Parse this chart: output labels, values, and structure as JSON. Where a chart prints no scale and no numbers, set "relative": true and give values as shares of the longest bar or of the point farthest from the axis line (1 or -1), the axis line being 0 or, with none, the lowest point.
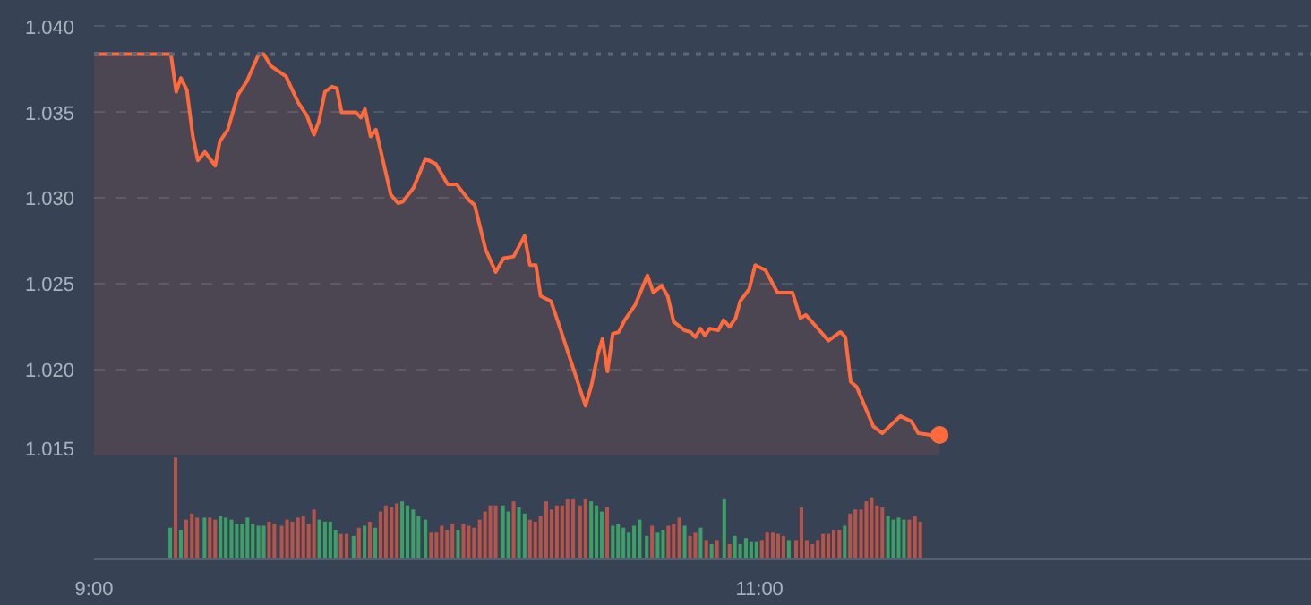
{
  "chart_data": [
    {
      "type": "area",
      "xlim": [
        9,
        12.66
      ],
      "ylim": [
        1.015,
        1.0415
      ],
      "yticks": [
        {
          "value": 1.015,
          "label": "1.015"
        },
        {
          "value": 1.02,
          "label": "1.020"
        },
        {
          "value": 1.025,
          "label": "1.025"
        },
        {
          "value": 1.03,
          "label": "1.030"
        },
        {
          "value": 1.035,
          "label": "1.035"
        },
        {
          "value": 1.04,
          "label": "1.040"
        }
      ],
      "tick_labels": "y",
      "grid": "y",
      "ref_lines": [
        {
          "axis": "y",
          "value": 1.0384,
          "line_style": "dotted",
          "color": "#5d6675"
        }
      ],
      "series": [
        {
          "type": "area",
          "color": "#ff6a3d",
          "line_style": "solid",
          "x": [
            9.0,
            9.231,
            9.247,
            9.261,
            9.279,
            9.297,
            9.312,
            9.333,
            9.364,
            9.378,
            9.402,
            9.432,
            9.459,
            9.495,
            9.51,
            9.532,
            9.577,
            9.613,
            9.64,
            9.661,
            9.676,
            9.694,
            9.715,
            9.73,
            9.744,
            9.787,
            9.802,
            9.814,
            9.831,
            9.847,
            9.892,
            9.914,
            9.928,
            9.96,
            9.996,
            10.027,
            10.063,
            10.09,
            10.126,
            10.144,
            10.177,
            10.207,
            10.231,
            10.261,
            10.294,
            10.31,
            10.328,
            10.342,
            10.373,
            10.396,
            10.477,
            10.495,
            10.514,
            10.528,
            10.543,
            10.559,
            10.577,
            10.595,
            10.627,
            10.663,
            10.681,
            10.706,
            10.724,
            10.742,
            10.775,
            10.793,
            10.807,
            10.822,
            10.836,
            10.85,
            10.876,
            10.892,
            10.91,
            10.928,
            10.942,
            10.969,
            10.987,
            11.018,
            11.054,
            11.099,
            11.123,
            11.139,
            11.171,
            11.207,
            11.243,
            11.258,
            11.274,
            11.292,
            11.342,
            11.369,
            11.423,
            11.456,
            11.477,
            11.514,
            11.541
          ],
          "values": [
            1.0384,
            1.0384,
            1.0362,
            1.037,
            1.0363,
            1.0336,
            1.0322,
            1.0327,
            1.0319,
            1.0333,
            1.034,
            1.036,
            1.0368,
            1.0384,
            1.0384,
            1.0377,
            1.0371,
            1.0356,
            1.0348,
            1.0337,
            1.0345,
            1.0362,
            1.0365,
            1.0364,
            1.035,
            1.035,
            1.0347,
            1.0352,
            1.0336,
            1.034,
            1.0302,
            1.0297,
            1.0298,
            1.0306,
            1.0323,
            1.032,
            1.0308,
            1.0308,
            1.0299,
            1.0296,
            1.027,
            1.0257,
            1.0265,
            1.0266,
            1.0278,
            1.0261,
            1.0261,
            1.0243,
            1.024,
            1.0227,
            1.0179,
            1.0191,
            1.0209,
            1.0218,
            1.0199,
            1.0221,
            1.0222,
            1.0229,
            1.0238,
            1.0255,
            1.0245,
            1.0249,
            1.0243,
            1.0228,
            1.0223,
            1.0222,
            1.0219,
            1.0224,
            1.022,
            1.0224,
            1.0223,
            1.0229,
            1.0225,
            1.023,
            1.024,
            1.0247,
            1.0261,
            1.0258,
            1.0245,
            1.0245,
            1.023,
            1.0232,
            1.0225,
            1.0217,
            1.0222,
            1.0219,
            1.0193,
            1.019,
            1.0167,
            1.0163,
            1.0173,
            1.017,
            1.0163,
            1.0162,
            1.0162
          ]
        },
        {
          "type": "scatter",
          "color": "#ff6a3d",
          "marker": "circle",
          "x": [
            11.541
          ],
          "values": [
            1.0162
          ]
        }
      ]
    },
    {
      "type": "bar",
      "relative": true,
      "xlim": [
        9,
        12.66
      ],
      "xticks": [
        {
          "value": 9,
          "label": "9:00"
        },
        {
          "value": 11,
          "label": "11:00"
        }
      ],
      "tick_labels": "x",
      "grid": false,
      "x": [
        9.229,
        9.245,
        9.261,
        9.277,
        9.294,
        9.31,
        9.332,
        9.348,
        9.364,
        9.38,
        9.396,
        9.413,
        9.429,
        9.445,
        9.461,
        9.477,
        9.494,
        9.51,
        9.526,
        9.542,
        9.564,
        9.58,
        9.596,
        9.613,
        9.629,
        9.645,
        9.661,
        9.677,
        9.694,
        9.71,
        9.726,
        9.742,
        9.759,
        9.78,
        9.796,
        9.813,
        9.829,
        9.845,
        9.861,
        9.877,
        9.894,
        9.91,
        9.926,
        9.942,
        9.959,
        9.975,
        9.996,
        10.013,
        10.029,
        10.045,
        10.061,
        10.077,
        10.094,
        10.11,
        10.126,
        10.142,
        10.159,
        10.175,
        10.191,
        10.207,
        10.229,
        10.245,
        10.261,
        10.277,
        10.294,
        10.31,
        10.326,
        10.342,
        10.359,
        10.375,
        10.391,
        10.407,
        10.423,
        10.44,
        10.461,
        10.477,
        10.494,
        10.51,
        10.526,
        10.542,
        10.559,
        10.575,
        10.591,
        10.607,
        10.623,
        10.64,
        10.661,
        10.677,
        10.694,
        10.71,
        10.726,
        10.742,
        10.759,
        10.775,
        10.791,
        10.807,
        10.823,
        10.84,
        10.856,
        10.872,
        10.894,
        10.91,
        10.926,
        10.942,
        10.959,
        10.975,
        10.991,
        11.007,
        11.023,
        11.04,
        11.056,
        11.072,
        11.088,
        11.11,
        11.126,
        11.142,
        11.159,
        11.175,
        11.191,
        11.207,
        11.223,
        11.24,
        11.256,
        11.272,
        11.288,
        11.305,
        11.321,
        11.337,
        11.353,
        11.369,
        11.386,
        11.402,
        11.418,
        11.434,
        11.45,
        11.467,
        11.483
      ],
      "values": [
        0.31,
        1,
        0.29,
        0.39,
        0.45,
        0.41,
        0.41,
        0.41,
        0.39,
        0.43,
        0.41,
        0.39,
        0.35,
        0.35,
        0.41,
        0.35,
        0.33,
        0.33,
        0.37,
        0.35,
        0.33,
        0.39,
        0.37,
        0.41,
        0.43,
        0.35,
        0.49,
        0.39,
        0.37,
        0.37,
        0.29,
        0.25,
        0.25,
        0.23,
        0.31,
        0.33,
        0.37,
        0.31,
        0.47,
        0.53,
        0.51,
        0.55,
        0.57,
        0.53,
        0.49,
        0.43,
        0.39,
        0.27,
        0.27,
        0.33,
        0.29,
        0.35,
        0.29,
        0.35,
        0.33,
        0.31,
        0.39,
        0.47,
        0.53,
        0.53,
        0.53,
        0.47,
        0.57,
        0.51,
        0.45,
        0.39,
        0.37,
        0.43,
        0.57,
        0.49,
        0.53,
        0.53,
        0.59,
        0.59,
        0.53,
        0.59,
        0.57,
        0.53,
        0.47,
        0.51,
        0.33,
        0.35,
        0.31,
        0.27,
        0.33,
        0.39,
        0.23,
        0.33,
        0.27,
        0.29,
        0.33,
        0.35,
        0.41,
        0.33,
        0.23,
        0.27,
        0.31,
        0.19,
        0.15,
        0.19,
        0.59,
        0.15,
        0.23,
        0.15,
        0.21,
        0.17,
        0.17,
        0.19,
        0.27,
        0.27,
        0.25,
        0.23,
        0.19,
        0.19,
        0.51,
        0.19,
        0.15,
        0.19,
        0.25,
        0.25,
        0.29,
        0.29,
        0.33,
        0.45,
        0.49,
        0.49,
        0.57,
        0.61,
        0.53,
        0.51,
        0.43,
        0.39,
        0.41,
        0.39,
        0.39,
        0.43,
        0.37
      ],
      "colors": [
        "#3e9e68",
        "#b5544b",
        "#3e9e68",
        "#b5544b",
        "#b5544b",
        "#b5544b",
        "#3e9e68",
        "#b5544b",
        "#b5544b",
        "#3e9e68",
        "#3e9e68",
        "#3e9e68",
        "#3e9e68",
        "#3e9e68",
        "#3e9e68",
        "#3e9e68",
        "#3e9e68",
        "#3e9e68",
        "#b5544b",
        "#b5544b",
        "#b5544b",
        "#b5544b",
        "#b5544b",
        "#b5544b",
        "#b5544b",
        "#b5544b",
        "#b5544b",
        "#3e9e68",
        "#3e9e68",
        "#3e9e68",
        "#3e9e68",
        "#b5544b",
        "#b5544b",
        "#3e9e68",
        "#b5544b",
        "#3e9e68",
        "#b5544b",
        "#3e9e68",
        "#b5544b",
        "#b5544b",
        "#b5544b",
        "#b5544b",
        "#3e9e68",
        "#3e9e68",
        "#3e9e68",
        "#3e9e68",
        "#3e9e68",
        "#b5544b",
        "#b5544b",
        "#b5544b",
        "#b5544b",
        "#b5544b",
        "#3e9e68",
        "#b5544b",
        "#b5544b",
        "#b5544b",
        "#b5544b",
        "#b5544b",
        "#b5544b",
        "#b5544b",
        "#3e9e68",
        "#3e9e68",
        "#b5544b",
        "#3e9e68",
        "#3e9e68",
        "#b5544b",
        "#b5544b",
        "#b5544b",
        "#b5544b",
        "#b5544b",
        "#b5544b",
        "#b5544b",
        "#b5544b",
        "#b5544b",
        "#b5544b",
        "#b5544b",
        "#3e9e68",
        "#3e9e68",
        "#3e9e68",
        "#b5544b",
        "#3e9e68",
        "#3e9e68",
        "#3e9e68",
        "#3e9e68",
        "#3e9e68",
        "#3e9e68",
        "#3e9e68",
        "#b5544b",
        "#3e9e68",
        "#3e9e68",
        "#b5544b",
        "#b5544b",
        "#b5544b",
        "#3e9e68",
        "#b5544b",
        "#b5544b",
        "#3e9e68",
        "#b5544b",
        "#3e9e68",
        "#b5544b",
        "#3e9e68",
        "#b5544b",
        "#3e9e68",
        "#3e9e68",
        "#3e9e68",
        "#3e9e68",
        "#3e9e68",
        "#b5544b",
        "#b5544b",
        "#b5544b",
        "#b5544b",
        "#b5544b",
        "#3e9e68",
        "#b5544b",
        "#b5544b",
        "#b5544b",
        "#b5544b",
        "#b5544b",
        "#b5544b",
        "#b5544b",
        "#b5544b",
        "#b5544b",
        "#3e9e68",
        "#b5544b",
        "#b5544b",
        "#b5544b",
        "#b5544b",
        "#b5544b",
        "#b5544b",
        "#b5544b",
        "#3e9e68",
        "#3e9e68",
        "#3e9e68",
        "#3e9e68",
        "#b5544b",
        "#b5544b",
        "#b5544b"
      ]
    }
  ]
}
